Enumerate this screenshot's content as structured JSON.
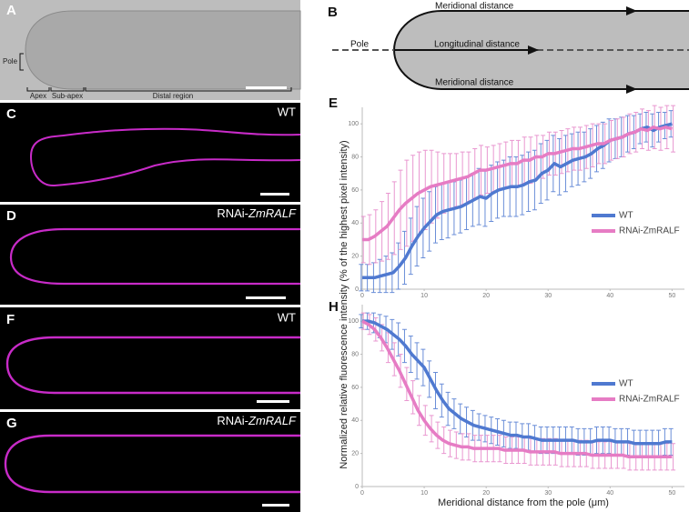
{
  "panels": {
    "a": {
      "letter": "A",
      "pole": "Pole",
      "apex": "Apex",
      "subapex": "Sub-apex",
      "distal": "Distal region"
    },
    "b": {
      "letter": "B",
      "meridional_top": "Meridional distance",
      "longitudinal": "Longitudinal distance",
      "meridional_bottom": "Meridional distance",
      "pole": "Pole"
    },
    "c": {
      "letter": "C",
      "label": "WT"
    },
    "d": {
      "letter": "D",
      "label_prefix": "RNAi-",
      "label_gene": "ZmRALF"
    },
    "e": {
      "letter": "E"
    },
    "f": {
      "letter": "F",
      "label": "WT"
    },
    "g": {
      "letter": "G",
      "label_prefix": "RNAi-",
      "label_gene": "ZmRALF"
    },
    "h": {
      "letter": "H"
    }
  },
  "figure": {
    "ylabel": "Normalized relative fluorescence intensity (% of the highest pixel intensity)"
  },
  "chart_data": [
    {
      "type": "line",
      "x": [
        0,
        1,
        2,
        3,
        4,
        5,
        6,
        7,
        8,
        9,
        10,
        11,
        12,
        13,
        14,
        15,
        16,
        17,
        18,
        19,
        20,
        21,
        22,
        23,
        24,
        25,
        26,
        27,
        28,
        29,
        30,
        31,
        32,
        33,
        34,
        35,
        36,
        37,
        38,
        39,
        40,
        41,
        42,
        43,
        44,
        45,
        46,
        47,
        48,
        49,
        50
      ],
      "xlim": [
        0,
        52
      ],
      "xticks": [
        0,
        10,
        20,
        30,
        40,
        50
      ],
      "ylim": [
        0,
        110
      ],
      "yticks": [
        0,
        20,
        40,
        60,
        80,
        100
      ],
      "legend": "right",
      "series": [
        {
          "name": "WT",
          "color": "#4f79d0",
          "err_color": "#5a82d4",
          "values": [
            7,
            7,
            7,
            8,
            9,
            10,
            14,
            19,
            26,
            32,
            37,
            41,
            45,
            47,
            48,
            49,
            50,
            52,
            54,
            56,
            55,
            58,
            60,
            61,
            62,
            62,
            63,
            65,
            66,
            70,
            72,
            76,
            74,
            76,
            78,
            79,
            80,
            82,
            85,
            87,
            90,
            91,
            92,
            94,
            95,
            97,
            98,
            96,
            98,
            99,
            100
          ],
          "errors": [
            8,
            8,
            9,
            10,
            11,
            12,
            14,
            16,
            17,
            18,
            18,
            18,
            17,
            17,
            17,
            16,
            16,
            16,
            16,
            17,
            17,
            17,
            17,
            17,
            18,
            18,
            18,
            18,
            18,
            18,
            18,
            17,
            17,
            17,
            16,
            16,
            15,
            15,
            14,
            14,
            13,
            12,
            12,
            11,
            10,
            9,
            9,
            10,
            9,
            8,
            8
          ]
        },
        {
          "name": "RNAi-ZmRALF",
          "color": "#e67cc4",
          "err_color": "#e78ccb",
          "values": [
            30,
            30,
            32,
            35,
            38,
            43,
            48,
            52,
            55,
            58,
            60,
            62,
            63,
            64,
            65,
            66,
            67,
            68,
            70,
            72,
            72,
            73,
            74,
            75,
            76,
            76,
            78,
            78,
            80,
            80,
            82,
            82,
            83,
            84,
            85,
            85,
            86,
            87,
            88,
            88,
            90,
            91,
            92,
            94,
            95,
            97,
            96,
            98,
            97,
            98,
            97
          ],
          "errors": [
            14,
            15,
            16,
            18,
            20,
            22,
            24,
            26,
            26,
            25,
            24,
            22,
            20,
            18,
            17,
            16,
            16,
            15,
            15,
            15,
            14,
            14,
            14,
            14,
            14,
            14,
            14,
            14,
            13,
            13,
            13,
            13,
            13,
            13,
            13,
            13,
            13,
            13,
            12,
            12,
            12,
            12,
            12,
            12,
            12,
            12,
            12,
            13,
            13,
            13,
            14
          ]
        }
      ]
    },
    {
      "type": "line",
      "x": [
        0,
        1,
        2,
        3,
        4,
        5,
        6,
        7,
        8,
        9,
        10,
        11,
        12,
        13,
        14,
        15,
        16,
        17,
        18,
        19,
        20,
        21,
        22,
        23,
        24,
        25,
        26,
        27,
        28,
        29,
        30,
        31,
        32,
        33,
        34,
        35,
        36,
        37,
        38,
        39,
        40,
        41,
        42,
        43,
        44,
        45,
        46,
        47,
        48,
        49,
        50
      ],
      "xlim": [
        0,
        52
      ],
      "xticks": [
        0,
        10,
        20,
        30,
        40,
        50
      ],
      "ylim": [
        0,
        110
      ],
      "yticks": [
        0,
        20,
        40,
        60,
        80,
        100
      ],
      "legend": "right",
      "xlabel": "Meridional distance from the pole (μm)",
      "series": [
        {
          "name": "WT",
          "color": "#4f79d0",
          "err_color": "#5a82d4",
          "values": [
            100,
            100,
            99,
            97,
            95,
            92,
            89,
            85,
            80,
            76,
            72,
            65,
            58,
            52,
            47,
            44,
            41,
            39,
            37,
            36,
            35,
            34,
            33,
            32,
            31,
            31,
            30,
            30,
            29,
            28,
            28,
            28,
            28,
            28,
            28,
            27,
            27,
            27,
            28,
            28,
            28,
            27,
            27,
            27,
            26,
            26,
            26,
            26,
            26,
            27,
            27
          ],
          "errors": [
            4,
            5,
            6,
            7,
            8,
            9,
            10,
            10,
            11,
            11,
            11,
            11,
            11,
            10,
            10,
            9,
            9,
            9,
            9,
            8,
            8,
            8,
            8,
            8,
            8,
            8,
            8,
            8,
            8,
            8,
            8,
            8,
            8,
            8,
            8,
            8,
            8,
            8,
            8,
            8,
            8,
            8,
            8,
            8,
            8,
            8,
            8,
            8,
            8,
            8,
            8
          ]
        },
        {
          "name": "RNAi-ZmRALF",
          "color": "#e67cc4",
          "err_color": "#e78ccb",
          "values": [
            100,
            98,
            95,
            90,
            84,
            77,
            70,
            62,
            54,
            46,
            40,
            35,
            31,
            28,
            26,
            25,
            24,
            24,
            23,
            23,
            23,
            23,
            23,
            22,
            22,
            22,
            22,
            21,
            21,
            21,
            21,
            21,
            20,
            20,
            20,
            20,
            20,
            19,
            19,
            19,
            19,
            19,
            19,
            18,
            18,
            18,
            18,
            18,
            18,
            18,
            18
          ],
          "errors": [
            5,
            6,
            7,
            8,
            9,
            10,
            10,
            10,
            10,
            9,
            9,
            8,
            8,
            8,
            8,
            8,
            8,
            8,
            8,
            8,
            8,
            8,
            8,
            8,
            8,
            8,
            8,
            8,
            8,
            8,
            8,
            8,
            8,
            8,
            8,
            8,
            8,
            8,
            8,
            8,
            8,
            8,
            8,
            8,
            8,
            8,
            8,
            8,
            8,
            8,
            8
          ]
        }
      ]
    }
  ]
}
